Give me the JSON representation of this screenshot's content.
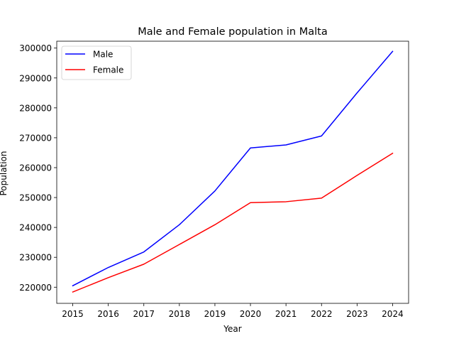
{
  "chart_data": {
    "type": "line",
    "title": "Male and Female population in Malta",
    "xlabel": "Year",
    "ylabel": "Population",
    "x": [
      2015,
      2016,
      2017,
      2018,
      2019,
      2020,
      2021,
      2022,
      2023,
      2024
    ],
    "xticks": [
      "2015",
      "2016",
      "2017",
      "2018",
      "2019",
      "2020",
      "2021",
      "2022",
      "2023",
      "2024"
    ],
    "yticks": [
      220000,
      230000,
      240000,
      250000,
      260000,
      270000,
      280000,
      290000,
      300000
    ],
    "ytick_labels": [
      "220000",
      "230000",
      "240000",
      "250000",
      "260000",
      "270000",
      "280000",
      "290000",
      "300000"
    ],
    "ylim": [
      214600,
      302300
    ],
    "xlim": [
      2014.55,
      2024.45
    ],
    "grid": false,
    "legend": "top-left",
    "series": [
      {
        "name": "Male",
        "color": "#0000ff",
        "values": [
          220500,
          226600,
          231800,
          240900,
          252200,
          266600,
          267600,
          270600,
          285000,
          298900
        ]
      },
      {
        "name": "Female",
        "color": "#ff0000",
        "values": [
          218400,
          223200,
          227700,
          234300,
          240900,
          248300,
          248600,
          249800,
          257400,
          264800
        ]
      }
    ]
  }
}
